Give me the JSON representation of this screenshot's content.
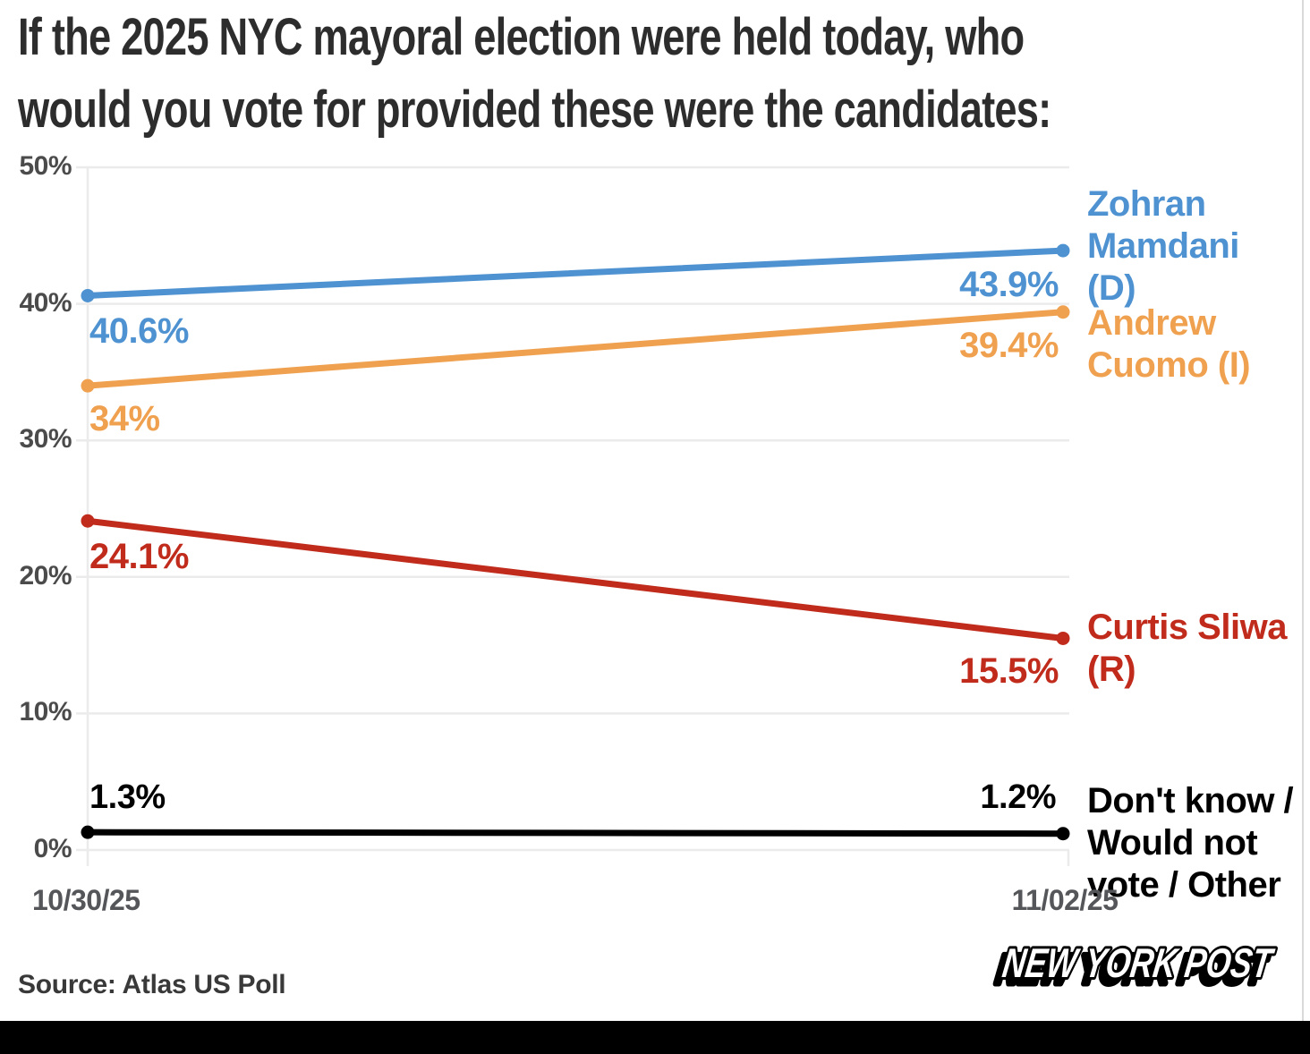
{
  "title": {
    "full": "If the 2025 NYC mayoral election were held today, who would you vote for provided these were the candidates:",
    "lines": [
      "If the 2025 NYC mayoral election were held today, who",
      "would you vote for provided these were the candidates:"
    ]
  },
  "source_note": "Source: Atlas US Poll",
  "brand": "NEW YORK POST",
  "colors": {
    "mamdani_blue": "#4E92D1",
    "cuomo_orange": "#F0A150",
    "sliwa_red": "#C02B1C",
    "dont_know_black": "#000000",
    "grid": "#ebebeb",
    "title_text": "#2d2d2d",
    "axis_text": "#4b4b4b",
    "date_text": "#555659",
    "footer_bar": "#000000"
  },
  "chart_data": {
    "type": "line",
    "x": [
      "10/30/25",
      "11/02/25"
    ],
    "ylim": [
      0,
      50
    ],
    "grid": true,
    "legend_position": "right",
    "yticks": [
      {
        "value": 0,
        "label": "0%"
      },
      {
        "value": 10,
        "label": "10%"
      },
      {
        "value": 20,
        "label": "20%"
      },
      {
        "value": 30,
        "label": "30%"
      },
      {
        "value": 40,
        "label": "40%"
      },
      {
        "value": 50,
        "label": "50%"
      }
    ],
    "series": [
      {
        "name": "Zohran Mamdani (D)",
        "color": "#4E92D1",
        "values": [
          40.6,
          43.9
        ],
        "point_labels": [
          "40.6%",
          "43.9%"
        ],
        "legend_lines": [
          "Zohran",
          "Mamdani",
          "(D)"
        ]
      },
      {
        "name": "Andrew Cuomo (I)",
        "color": "#F0A150",
        "values": [
          34,
          39.4
        ],
        "point_labels": [
          "34%",
          "39.4%"
        ],
        "legend_lines": [
          "Andrew",
          "Cuomo (I)"
        ]
      },
      {
        "name": "Curtis Sliwa (R)",
        "color": "#C02B1C",
        "values": [
          24.1,
          15.5
        ],
        "point_labels": [
          "24.1%",
          "15.5%"
        ],
        "legend_lines": [
          "Curtis Sliwa",
          "(R)"
        ]
      },
      {
        "name": "Don't know / Would not vote / Other",
        "color": "#000000",
        "values": [
          1.3,
          1.2
        ],
        "point_labels": [
          "1.3%",
          "1.2%"
        ],
        "legend_lines": [
          "Don't know /",
          "Would not",
          "vote / Other"
        ]
      }
    ]
  }
}
